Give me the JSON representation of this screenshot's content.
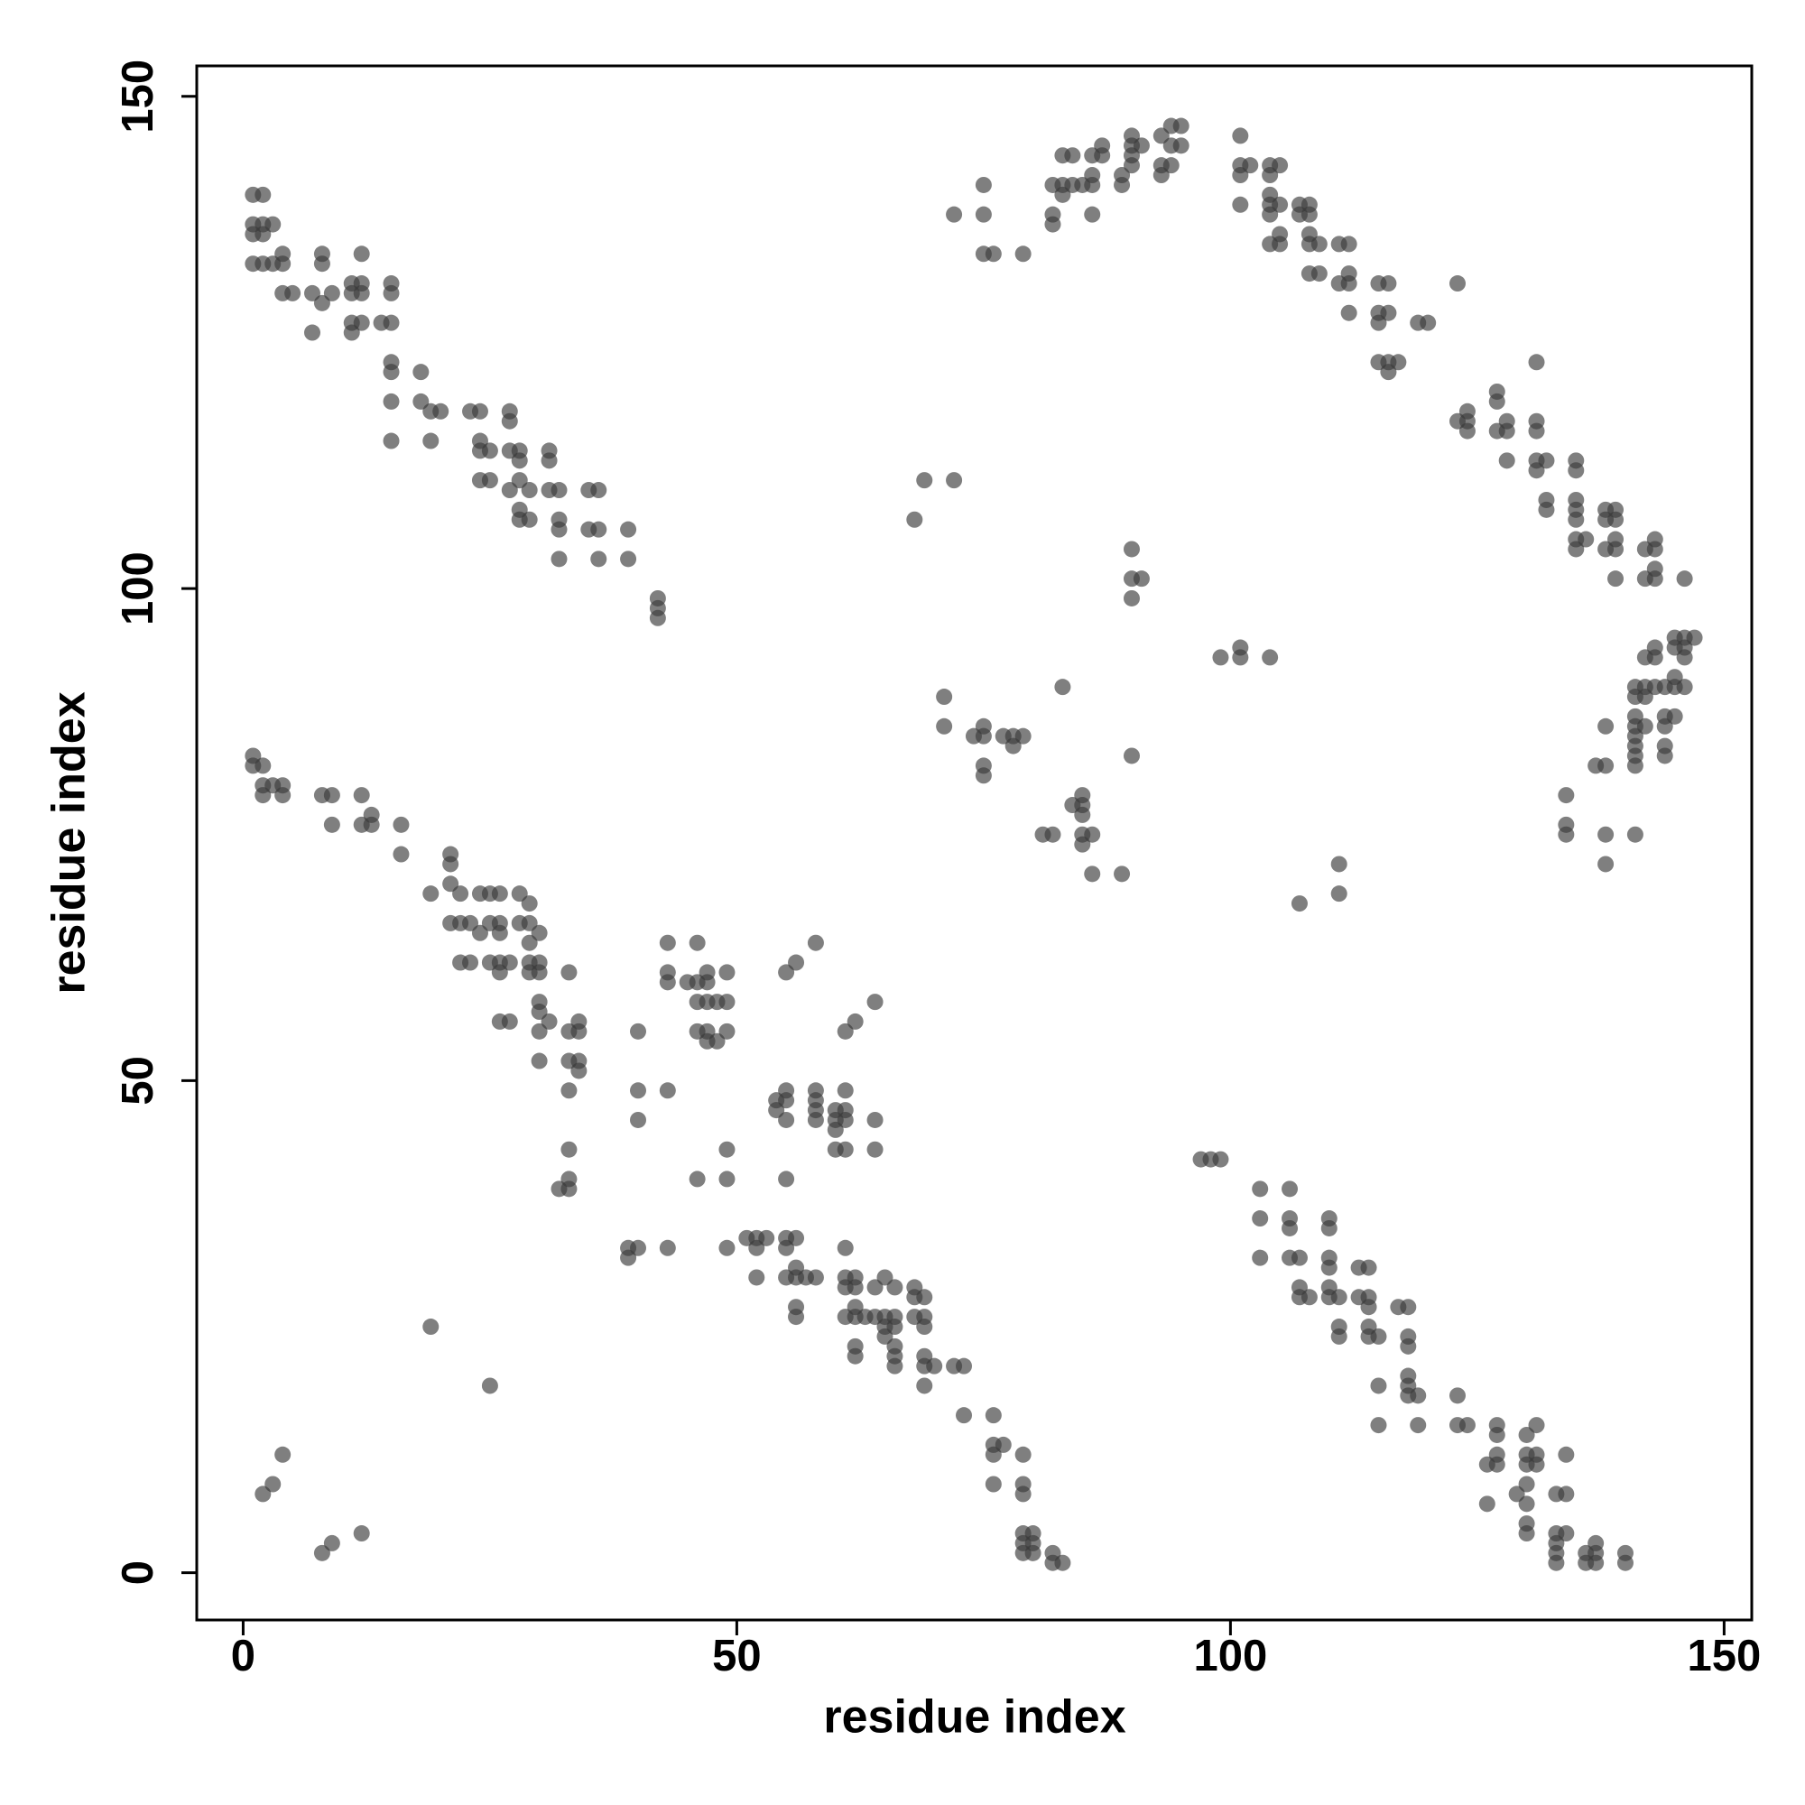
{
  "chart_data": {
    "type": "scatter",
    "x_label": "residue index",
    "y_label": "residue index",
    "xlim": [
      -4.7,
      152.8
    ],
    "ylim": [
      -4.8,
      153.1
    ],
    "xticks": [
      0,
      50,
      100,
      150
    ],
    "yticks": [
      0,
      50,
      100,
      150
    ],
    "grid": false,
    "color": "#3a3a3a",
    "alpha": 0.65,
    "x": [
      1,
      2,
      1,
      2,
      3,
      1,
      2,
      1,
      2,
      3,
      4,
      4,
      4,
      5,
      7,
      8,
      9,
      8,
      8,
      11,
      12,
      12,
      11,
      12,
      7,
      11,
      11,
      12,
      14,
      15,
      15,
      15,
      15,
      15,
      18,
      15,
      18,
      19,
      20,
      23,
      24,
      27,
      27,
      15,
      19,
      24,
      24,
      25,
      27,
      28,
      31,
      31,
      28,
      24,
      25,
      28,
      27,
      29,
      31,
      32,
      35,
      36,
      28,
      28,
      29,
      32,
      32,
      35,
      36,
      39,
      32,
      36,
      39,
      42,
      42,
      42,
      1,
      1,
      2,
      2,
      2,
      3,
      4,
      4,
      8,
      9,
      12,
      9,
      12,
      13,
      13,
      16,
      16,
      21,
      21,
      19,
      21,
      22,
      24,
      25,
      26,
      28,
      29,
      21,
      22,
      23,
      24,
      25,
      26,
      26,
      28,
      29,
      29,
      30,
      22,
      23,
      25,
      26,
      26,
      27,
      29,
      30,
      29,
      30,
      33,
      30,
      30,
      31,
      30,
      26,
      27,
      33,
      34,
      34,
      33,
      34,
      34,
      30,
      33,
      33,
      32,
      33,
      33,
      40,
      40,
      43,
      40,
      43,
      43,
      43,
      46,
      45,
      46,
      47,
      47,
      49,
      46,
      47,
      48,
      49,
      46,
      47,
      47,
      48,
      49,
      49,
      46,
      49,
      39,
      39,
      40,
      43,
      49,
      51,
      52,
      53,
      52,
      52,
      55,
      56,
      58,
      54,
      54,
      55,
      55,
      55,
      58,
      58,
      58,
      58,
      60,
      60,
      60,
      60,
      61,
      61,
      61,
      61,
      61,
      62,
      64,
      64,
      64,
      55,
      55,
      56,
      55,
      56,
      55,
      56,
      57,
      58,
      56,
      56,
      61,
      61,
      62,
      61,
      62,
      64,
      65,
      66,
      68,
      69,
      68,
      61,
      62,
      63,
      64,
      65,
      66,
      68,
      69,
      62,
      65,
      66,
      69,
      65,
      62,
      62,
      66,
      66,
      66,
      69,
      69,
      70,
      72,
      73,
      69,
      73,
      76,
      76,
      77,
      76,
      79,
      76,
      79,
      79,
      79,
      80,
      79,
      80,
      79,
      80,
      82,
      82,
      83,
      19,
      25,
      4,
      3,
      2,
      8,
      9,
      12,
      97,
      98,
      99,
      103,
      106,
      103,
      106,
      106,
      110,
      110,
      103,
      106,
      107,
      110,
      110,
      113,
      114,
      107,
      107,
      108,
      110,
      110,
      111,
      113,
      114,
      114,
      117,
      118,
      111,
      111,
      114,
      114,
      115,
      118,
      118,
      118,
      118,
      115,
      118,
      119,
      123,
      115,
      119,
      123,
      124,
      127,
      131,
      127,
      130,
      127,
      130,
      131,
      134,
      126,
      127,
      130,
      131,
      126,
      129,
      130,
      130,
      133,
      134,
      130,
      130,
      133,
      134,
      133,
      133,
      133,
      136,
      137,
      137,
      136,
      137,
      140,
      140,
      72,
      75,
      75,
      75,
      76,
      79,
      82,
      83,
      82,
      82,
      83,
      83,
      84,
      84,
      85,
      86,
      86,
      86,
      86,
      87,
      87,
      89,
      89,
      90,
      90,
      90,
      90,
      91,
      93,
      93,
      93,
      94,
      94,
      94,
      95,
      95,
      101,
      101,
      101,
      102,
      101,
      104,
      105,
      104,
      104,
      104,
      105,
      104,
      104,
      105,
      105,
      107,
      108,
      107,
      108,
      108,
      108,
      109,
      108,
      109,
      111,
      112,
      112,
      112,
      111,
      112,
      115,
      116,
      115,
      116,
      115,
      119,
      120,
      123,
      115,
      116,
      117,
      116,
      123,
      124,
      124,
      124,
      127,
      127,
      127,
      128,
      128,
      131,
      131,
      131,
      128,
      131,
      132,
      131,
      132,
      132,
      135,
      135,
      135,
      135,
      135,
      135,
      135,
      136,
      138,
      139,
      138,
      139,
      138,
      139,
      139,
      139,
      142,
      143,
      143,
      143,
      142,
      143,
      146,
      145,
      146,
      147,
      145,
      146,
      146,
      143,
      142,
      143,
      141,
      142,
      143,
      144,
      145,
      146,
      145,
      141,
      142,
      141,
      144,
      145,
      141,
      142,
      144,
      138,
      141,
      141,
      144,
      141,
      144,
      137,
      138,
      141,
      134,
      134,
      134,
      138,
      141,
      138,
      68,
      69,
      72,
      90,
      90,
      91,
      90,
      99,
      101,
      101,
      104,
      71,
      71,
      75,
      75,
      74,
      77,
      78,
      79,
      78,
      75,
      75,
      83,
      90,
      85,
      84,
      85,
      85,
      81,
      82,
      85,
      86,
      85,
      86,
      89,
      111,
      111,
      107
    ],
    "values": [
      140,
      140,
      137,
      137,
      137,
      136,
      136,
      133,
      133,
      133,
      133,
      134,
      130,
      130,
      130,
      129,
      130,
      134,
      133,
      131,
      131,
      134,
      130,
      130,
      126,
      127,
      126,
      127,
      127,
      127,
      130,
      131,
      123,
      122,
      122,
      119,
      119,
      118,
      118,
      118,
      118,
      118,
      117,
      115,
      115,
      115,
      114,
      114,
      114,
      114,
      114,
      113,
      113,
      111,
      111,
      111,
      110,
      110,
      110,
      110,
      110,
      110,
      108,
      107,
      107,
      107,
      106,
      106,
      106,
      106,
      103,
      103,
      103,
      99,
      98,
      97,
      83,
      82,
      82,
      80,
      79,
      80,
      80,
      79,
      79,
      79,
      79,
      76,
      76,
      77,
      76,
      76,
      73,
      73,
      72,
      69,
      70,
      69,
      69,
      69,
      69,
      69,
      68,
      66,
      66,
      66,
      65,
      66,
      66,
      65,
      66,
      66,
      64,
      65,
      62,
      62,
      62,
      62,
      61,
      62,
      62,
      62,
      61,
      61,
      61,
      58,
      57,
      56,
      55,
      56,
      56,
      55,
      56,
      55,
      52,
      52,
      51,
      52,
      49,
      43,
      39,
      39,
      40,
      55,
      49,
      49,
      46,
      64,
      61,
      60,
      64,
      60,
      60,
      60,
      61,
      61,
      58,
      58,
      58,
      58,
      55,
      55,
      54,
      54,
      55,
      43,
      40,
      40,
      33,
      32,
      33,
      33,
      33,
      34,
      34,
      34,
      33,
      30,
      61,
      62,
      64,
      48,
      47,
      49,
      48,
      46,
      49,
      48,
      47,
      46,
      47,
      46,
      45,
      43,
      49,
      47,
      46,
      43,
      55,
      56,
      58,
      46,
      43,
      40,
      34,
      34,
      33,
      31,
      30,
      30,
      30,
      30,
      27,
      26,
      33,
      30,
      30,
      29,
      29,
      29,
      30,
      29,
      29,
      28,
      28,
      26,
      26,
      26,
      26,
      26,
      26,
      26,
      26,
      27,
      25,
      25,
      25,
      24,
      23,
      22,
      23,
      22,
      21,
      22,
      21,
      21,
      21,
      21,
      19,
      16,
      16,
      13,
      13,
      12,
      12,
      9,
      9,
      8,
      4,
      4,
      3,
      3,
      2,
      2,
      2,
      1,
      1,
      25,
      19,
      12,
      9,
      8,
      2,
      3,
      4,
      42,
      42,
      42,
      39,
      39,
      36,
      36,
      35,
      36,
      35,
      32,
      32,
      32,
      32,
      31,
      31,
      31,
      29,
      28,
      28,
      29,
      28,
      28,
      28,
      28,
      27,
      27,
      27,
      25,
      24,
      25,
      24,
      24,
      24,
      23,
      20,
      19,
      19,
      18,
      18,
      18,
      15,
      15,
      15,
      15,
      15,
      15,
      14,
      14,
      12,
      12,
      12,
      12,
      11,
      11,
      11,
      11,
      7,
      8,
      9,
      7,
      8,
      8,
      5,
      4,
      4,
      4,
      3,
      2,
      1,
      2,
      3,
      2,
      1,
      1,
      2,
      1,
      138,
      138,
      141,
      134,
      134,
      134,
      141,
      141,
      138,
      137,
      140,
      144,
      144,
      141,
      141,
      142,
      141,
      138,
      144,
      145,
      144,
      142,
      141,
      146,
      145,
      144,
      143,
      145,
      142,
      143,
      146,
      147,
      145,
      143,
      147,
      145,
      146,
      143,
      142,
      143,
      139,
      143,
      143,
      142,
      140,
      139,
      139,
      138,
      135,
      136,
      135,
      139,
      139,
      138,
      138,
      136,
      135,
      135,
      132,
      132,
      135,
      135,
      132,
      131,
      131,
      128,
      131,
      131,
      128,
      128,
      127,
      127,
      127,
      131,
      123,
      123,
      123,
      122,
      117,
      118,
      117,
      116,
      120,
      119,
      116,
      117,
      116,
      123,
      117,
      116,
      113,
      113,
      113,
      112,
      109,
      108,
      113,
      112,
      109,
      108,
      107,
      105,
      104,
      105,
      108,
      108,
      107,
      107,
      104,
      105,
      104,
      101,
      104,
      105,
      104,
      102,
      101,
      101,
      101,
      95,
      95,
      95,
      94,
      94,
      93,
      94,
      93,
      93,
      90,
      90,
      90,
      90,
      90,
      90,
      91,
      89,
      89,
      87,
      87,
      87,
      86,
      86,
      86,
      86,
      85,
      84,
      84,
      83,
      83,
      82,
      82,
      82,
      79,
      76,
      75,
      75,
      75,
      72,
      107,
      111,
      111,
      104,
      101,
      101,
      99,
      93,
      94,
      93,
      93,
      89,
      86,
      86,
      85,
      85,
      85,
      85,
      85,
      84,
      82,
      81,
      90,
      83,
      79,
      78,
      78,
      77,
      75,
      75,
      75,
      75,
      74,
      71,
      71,
      72,
      69,
      68
    ]
  }
}
